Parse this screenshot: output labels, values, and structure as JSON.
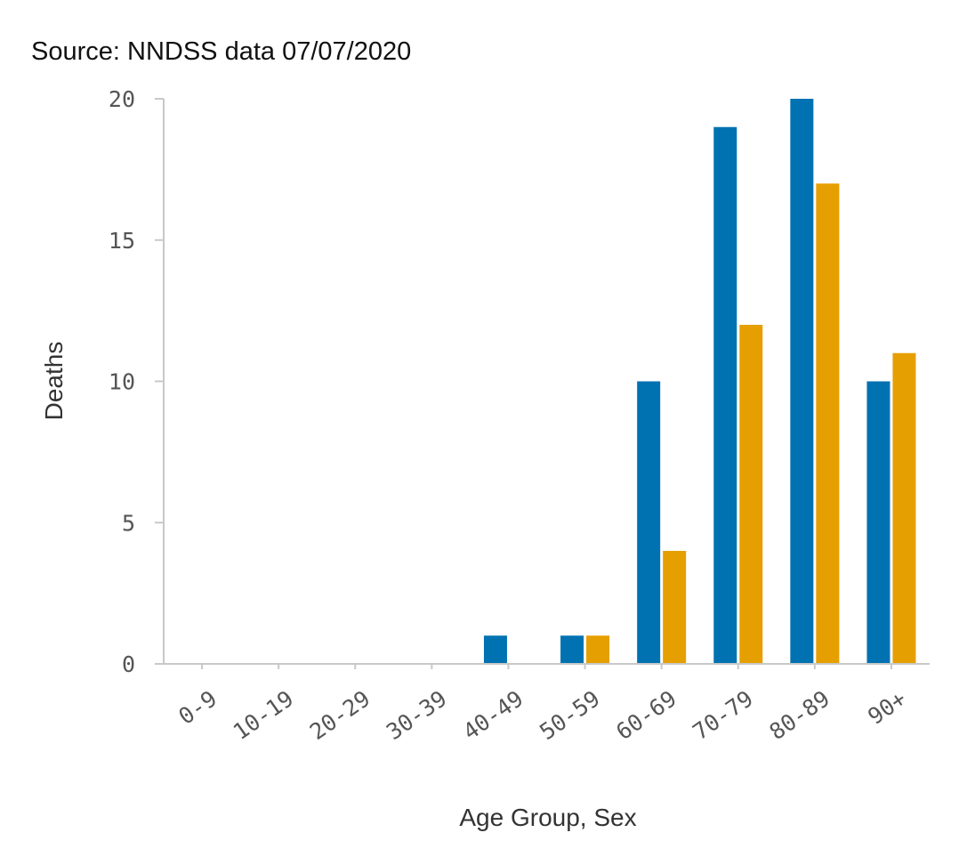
{
  "chart_data": {
    "type": "bar",
    "subtitle": "Source: NNDSS data 07/07/2020",
    "xlabel": "Age Group, Sex",
    "ylabel": "Deaths",
    "categories": [
      "0-9",
      "10-19",
      "20-29",
      "30-39",
      "40-49",
      "50-59",
      "60-69",
      "70-79",
      "80-89",
      "90+"
    ],
    "series": [
      {
        "color": "#0072b2",
        "values": [
          0,
          0,
          0,
          0,
          1,
          1,
          10,
          19,
          20,
          10
        ]
      },
      {
        "color": "#e69f00",
        "values": [
          0,
          0,
          0,
          0,
          0,
          1,
          4,
          12,
          17,
          11
        ]
      }
    ],
    "ylim": [
      0,
      20
    ],
    "yticks": [
      "0",
      "5",
      "10",
      "15",
      "20"
    ],
    "grid": false,
    "legend": "none",
    "axis_color": "#c8c8c8"
  }
}
